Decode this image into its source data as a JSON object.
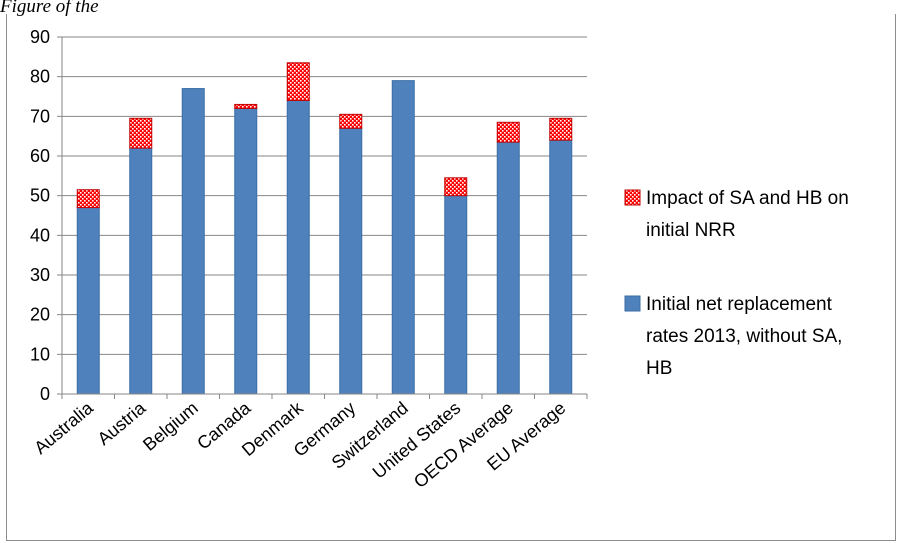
{
  "caption": "Figure                                                          of the",
  "chart_data": {
    "type": "bar",
    "stacked": true,
    "categories": [
      "Australia",
      "Austria",
      "Belgium",
      "Canada",
      "Denmark",
      "Germany",
      "Switzerland",
      "United States",
      "OECD Average",
      "EU Average"
    ],
    "series": [
      {
        "name": "Initial net replacement rates 2013, without SA, HB",
        "values": [
          47,
          62,
          77,
          72,
          74,
          67,
          79,
          50,
          63.5,
          64
        ],
        "color": "#4f81bd",
        "pattern": "solid"
      },
      {
        "name": "Impact of SA and HB on initial NRR",
        "values": [
          4.5,
          7.5,
          0,
          1,
          9.5,
          3.5,
          0,
          4.5,
          5,
          5.5
        ],
        "color": "#ff0000",
        "pattern": "dotted"
      }
    ],
    "yticks": [
      "0",
      "10",
      "20",
      "30",
      "40",
      "50",
      "60",
      "70",
      "80",
      "90"
    ],
    "ylim": [
      0,
      90
    ],
    "grid": true,
    "legend_position": "right",
    "legend": [
      {
        "series": 1,
        "lines": [
          "Impact of SA and HB on",
          "initial NRR"
        ]
      },
      {
        "series": 0,
        "lines": [
          "Initial net replacement",
          "rates 2013, without SA,",
          "HB"
        ]
      }
    ]
  }
}
